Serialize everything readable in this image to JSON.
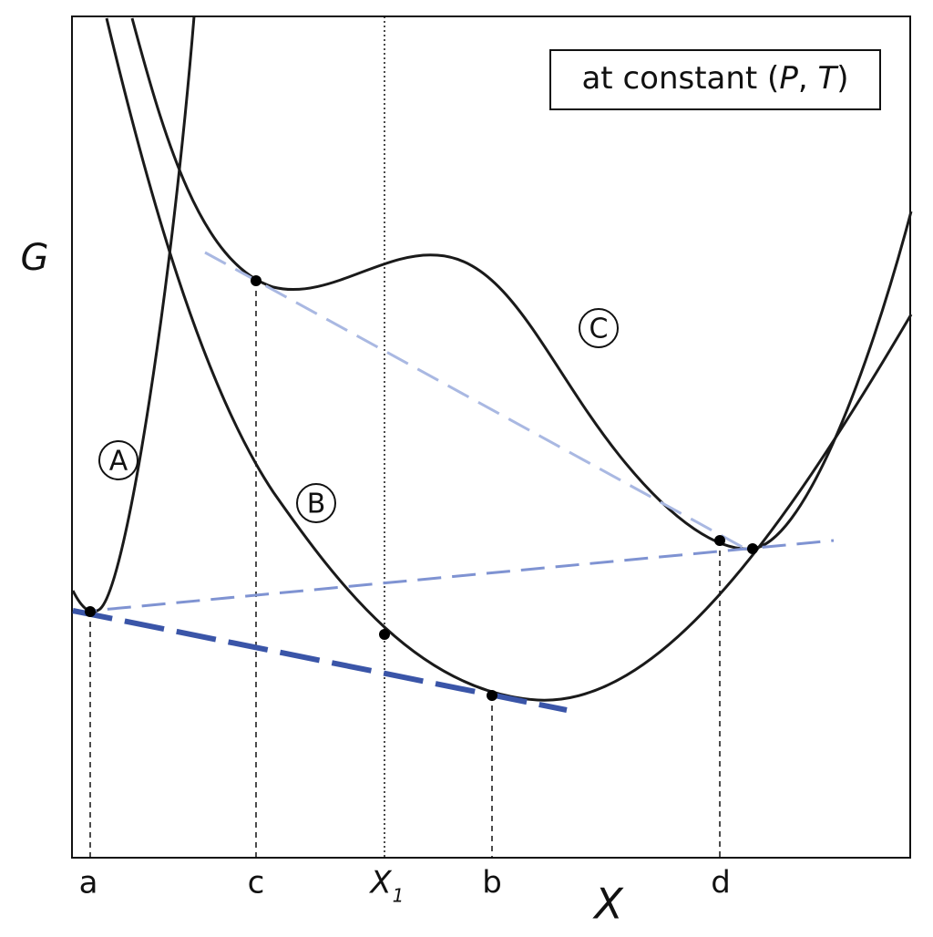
{
  "legend": {
    "parts": [
      "at constant (",
      "P",
      ", ",
      "T",
      ")"
    ]
  },
  "axes": {
    "y_label": "G",
    "x_label": "X"
  },
  "ticks": [
    "a",
    "c",
    {
      "main": "X",
      "sub": "1"
    },
    "b",
    "d"
  ],
  "curve_labels": [
    "A",
    "B",
    "C"
  ]
}
